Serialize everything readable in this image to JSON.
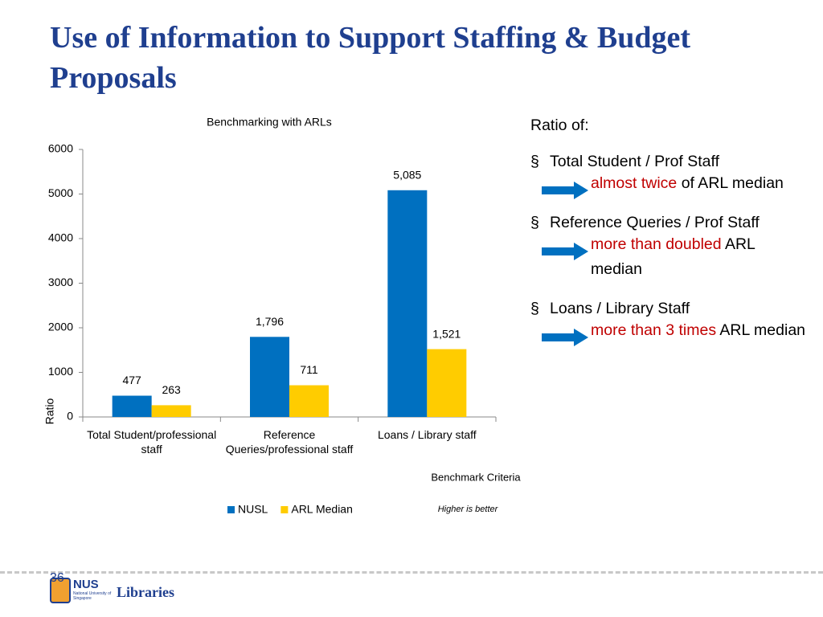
{
  "title": "Use of Information to Support Staffing & Budget Proposals",
  "chart_data": {
    "type": "bar",
    "title": "Benchmarking with ARLs",
    "categories": [
      "Total Student/professional staff",
      "Reference Queries/professional staff",
      "Loans / Library staff"
    ],
    "series": [
      {
        "name": "NUSL",
        "color": "#0070c0",
        "values": [
          477,
          1796,
          5085
        ],
        "value_labels": [
          "477",
          "1,796",
          "5,085"
        ]
      },
      {
        "name": "ARL Median",
        "color": "#ffcc00",
        "values": [
          263,
          711,
          1521
        ],
        "value_labels": [
          "263",
          "711",
          "1,521"
        ]
      }
    ],
    "ylim": [
      0,
      6000
    ],
    "yticks": [
      0,
      1000,
      2000,
      3000,
      4000,
      5000,
      6000
    ],
    "ylabel": "Ratio",
    "xlabel": "Benchmark Criteria",
    "note": "Higher is better",
    "legend": "bottom"
  },
  "panel": {
    "heading": "Ratio of:",
    "items": [
      {
        "label": "Total Student / Prof Staff",
        "highlight": "almost twice",
        "rest": "of ARL median"
      },
      {
        "label": "Reference Queries / Prof Staff",
        "highlight": "more than doubled",
        "rest": "ARL median"
      },
      {
        "label": "Loans / Library Staff",
        "highlight": "more than 3 times",
        "rest": "ARL median"
      }
    ]
  },
  "footer": {
    "page": "36",
    "logo": "NUS",
    "logo_sub": "National University of Singapore",
    "brand": "Libraries"
  }
}
